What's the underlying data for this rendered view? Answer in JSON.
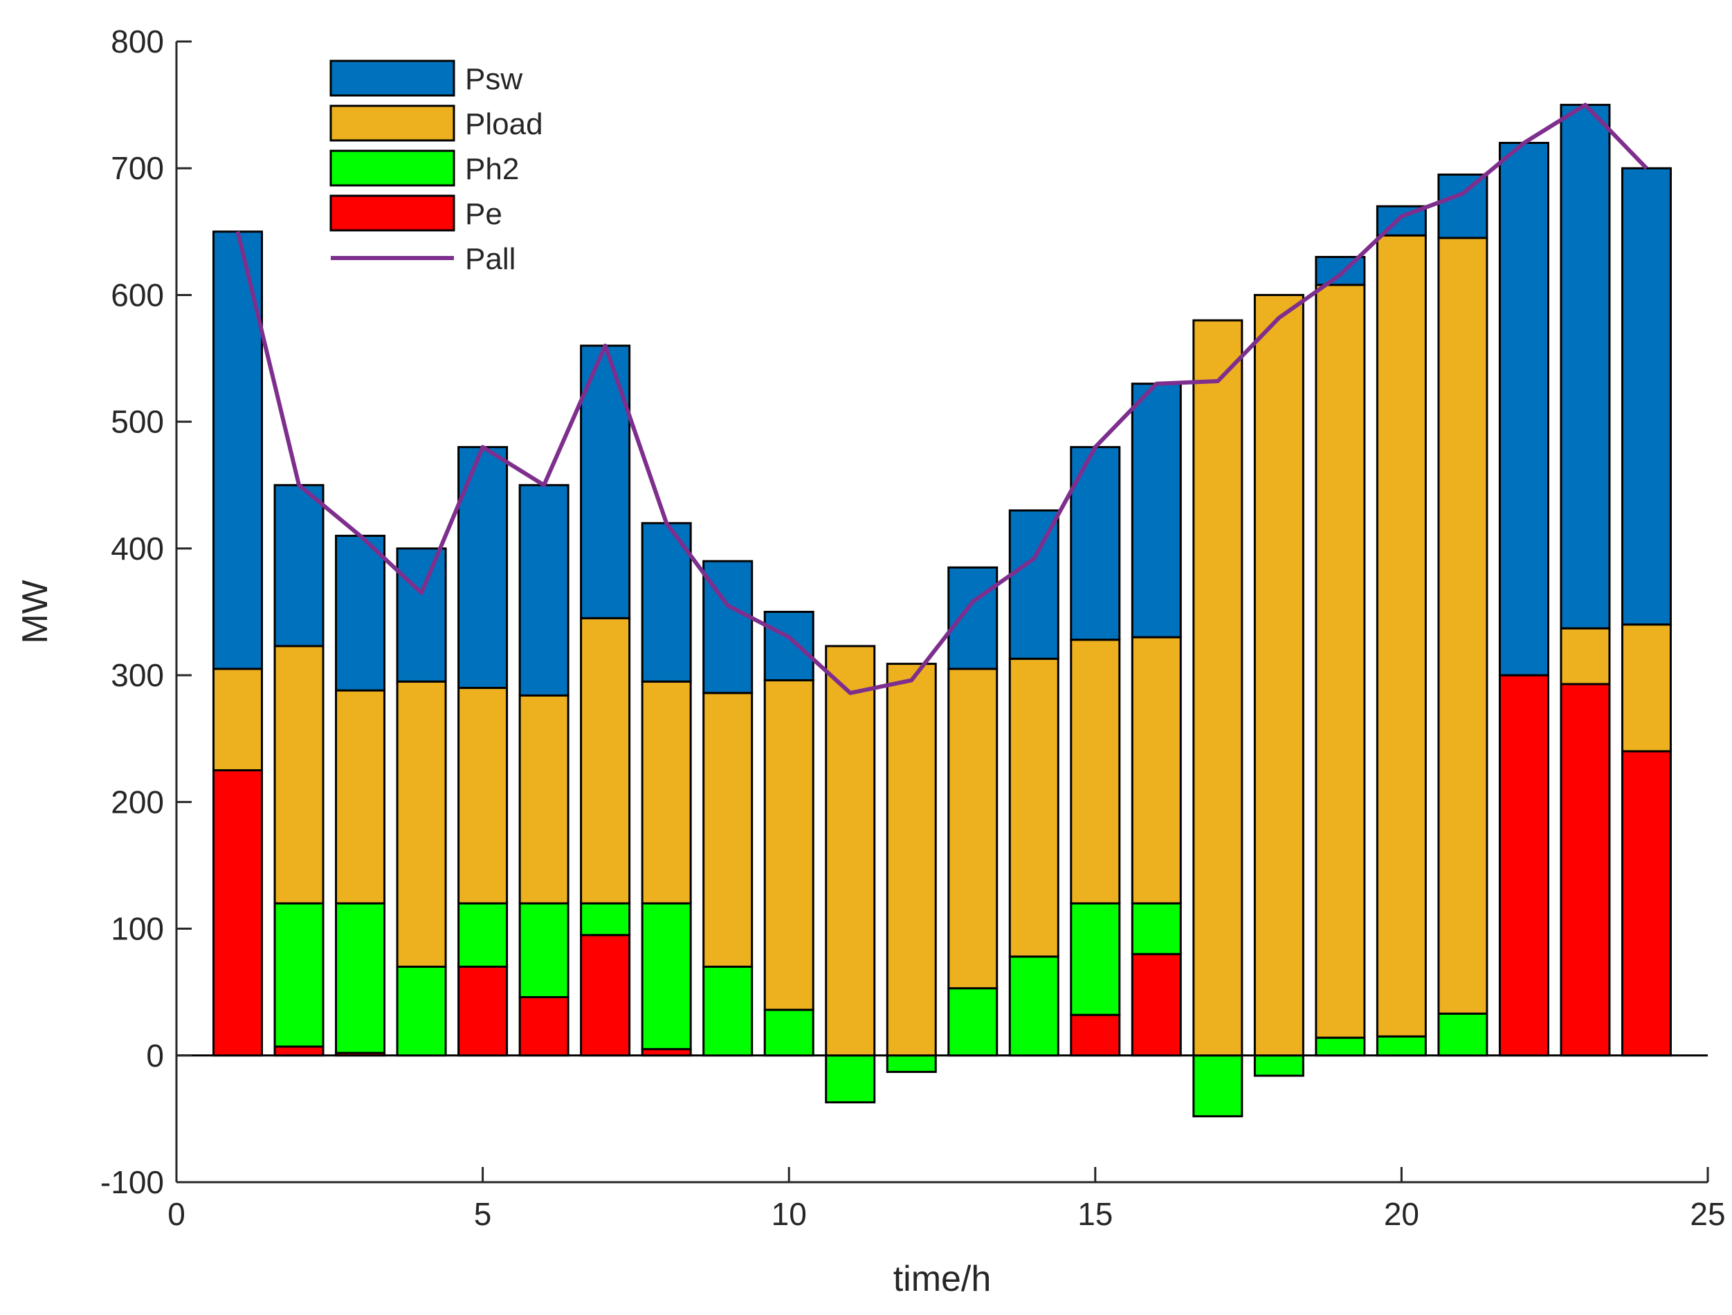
{
  "chart_data": {
    "type": "bar",
    "stacked": true,
    "xlabel": "time/h",
    "ylabel": "MW",
    "xlim": [
      0,
      25
    ],
    "ylim": [
      -100,
      800
    ],
    "xticks": [
      0,
      5,
      10,
      15,
      20,
      25
    ],
    "yticks": [
      -100,
      0,
      100,
      200,
      300,
      400,
      500,
      600,
      700,
      800
    ],
    "legend_position": "top-left",
    "x": [
      1,
      2,
      3,
      4,
      5,
      6,
      7,
      8,
      9,
      10,
      11,
      12,
      13,
      14,
      15,
      16,
      17,
      18,
      19,
      20,
      21,
      22,
      23,
      24
    ],
    "series": [
      {
        "name": "Pe",
        "color": "#ff0000",
        "values": [
          225,
          7,
          2,
          0,
          70,
          46,
          95,
          5,
          0,
          0,
          0,
          0,
          0,
          0,
          32,
          80,
          0,
          0,
          0,
          0,
          0,
          300,
          293,
          240
        ]
      },
      {
        "name": "Ph2",
        "color": "#00ff00",
        "values": [
          0,
          113,
          118,
          70,
          50,
          74,
          25,
          115,
          70,
          36,
          -37,
          -13,
          53,
          78,
          88,
          40,
          -48,
          -16,
          14,
          15,
          33,
          0,
          0,
          0
        ]
      },
      {
        "name": "Pload",
        "color": "#edb120",
        "values": [
          80,
          203,
          168,
          225,
          170,
          164,
          225,
          175,
          216,
          260,
          323,
          309,
          252,
          235,
          208,
          210,
          580,
          600,
          594,
          632,
          612,
          0,
          44,
          100
        ]
      },
      {
        "name": "Psw",
        "color": "#0072bd",
        "values": [
          345,
          127,
          122,
          105,
          190,
          166,
          215,
          125,
          104,
          54,
          0,
          0,
          80,
          117,
          152,
          200,
          0,
          0,
          22,
          23,
          50,
          420,
          413,
          360
        ]
      }
    ],
    "line": {
      "name": "Pall",
      "color": "#7e2f8e",
      "values": [
        650,
        450,
        410,
        365,
        480,
        450,
        560,
        420,
        355,
        330,
        286,
        296,
        358,
        392,
        480,
        530,
        532,
        582,
        616,
        662,
        680,
        720,
        750,
        700
      ]
    },
    "legend": [
      "Psw",
      "Pload",
      "Ph2",
      "Pe",
      "Pall"
    ]
  }
}
